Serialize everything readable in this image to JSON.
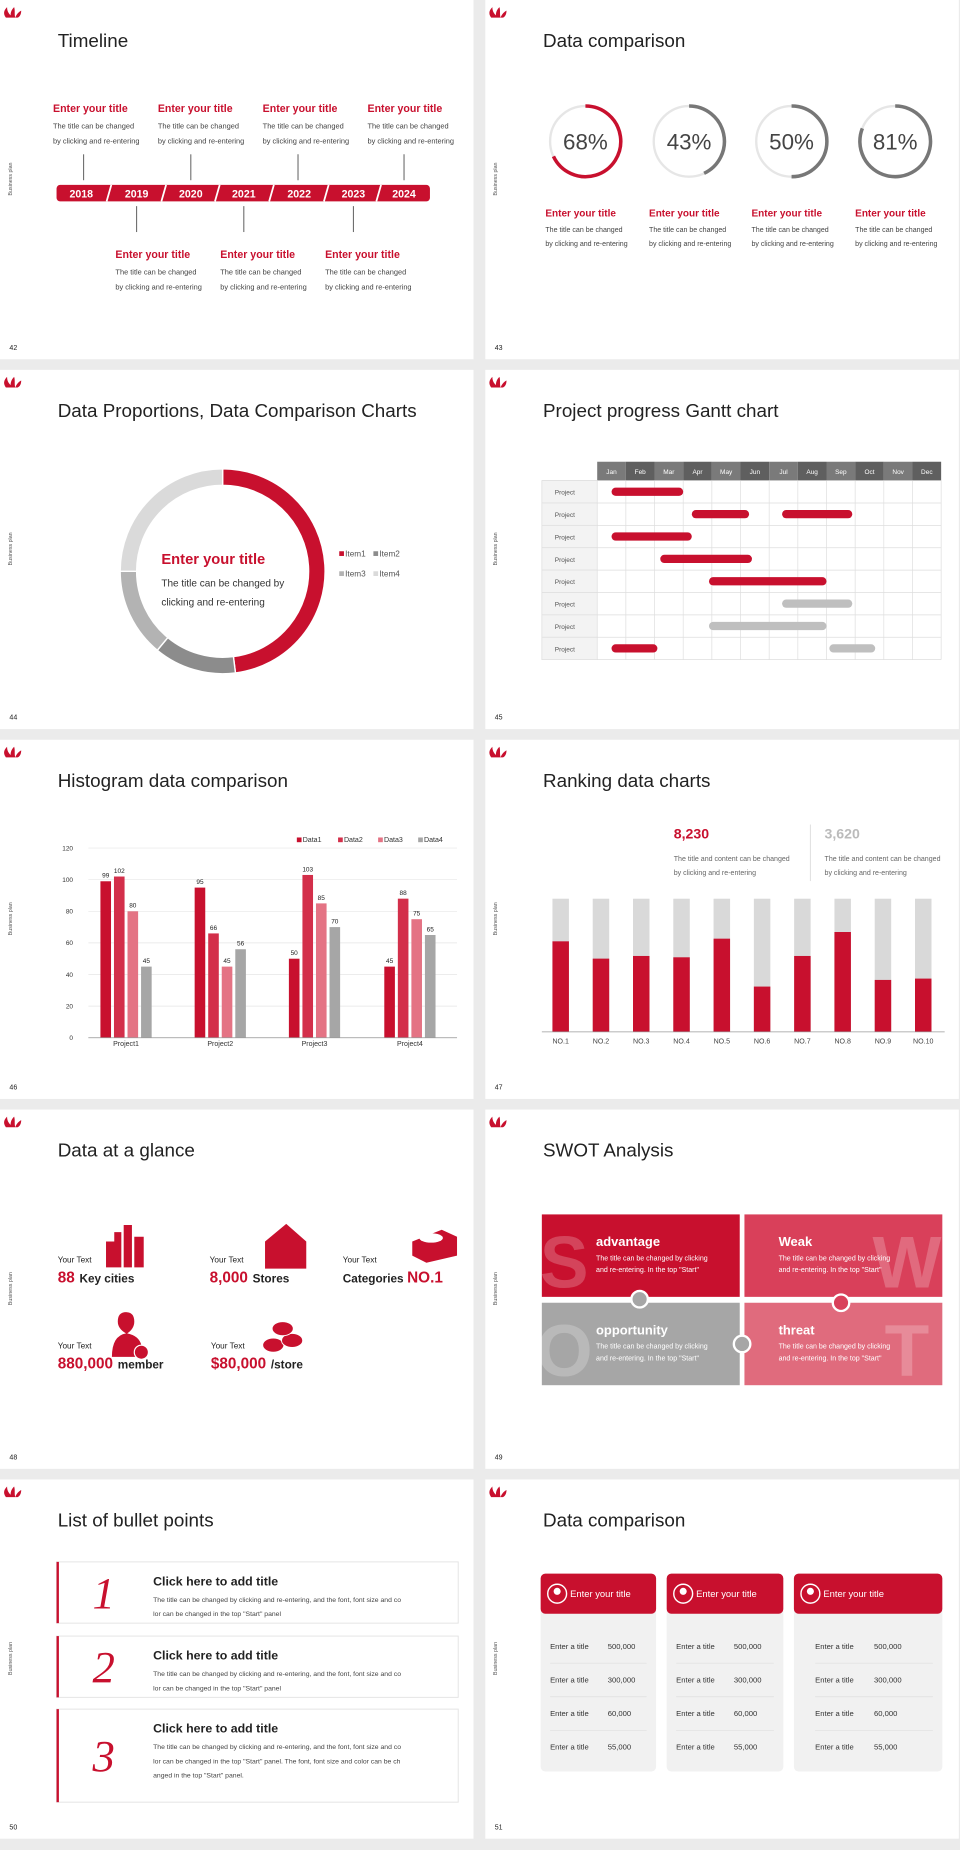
{
  "side_label": "Business plan",
  "slides": [
    {
      "number": "42",
      "title": "Timeline",
      "years": [
        "2018",
        "2019",
        "2020",
        "2021",
        "2022",
        "2023",
        "2024"
      ],
      "items": [
        {
          "title": "Enter your title",
          "lines": [
            "The title can be changed",
            "by clicking and re-entering"
          ]
        },
        {
          "title": "Enter your title",
          "lines": [
            "The title can be changed",
            "by clicking and re-entering"
          ]
        },
        {
          "title": "Enter your title",
          "lines": [
            "The title can be changed",
            "by clicking and re-entering"
          ]
        },
        {
          "title": "Enter your title",
          "lines": [
            "The title can be changed",
            "by clicking and re-entering"
          ]
        },
        {
          "title": "Enter your title",
          "lines": [
            "The title can be changed",
            "by clicking and re-entering"
          ]
        },
        {
          "title": "Enter your title",
          "lines": [
            "The title can be changed",
            "by clicking and re-entering"
          ]
        },
        {
          "title": "Enter your title",
          "lines": [
            "The title can be changed",
            "by clicking and re-entering"
          ]
        }
      ]
    },
    {
      "number": "43",
      "title": "Data comparison",
      "values": [
        68,
        43,
        50,
        81
      ],
      "value_labels": [
        "68%",
        "43%",
        "50%",
        "81%"
      ],
      "items": [
        {
          "title": "Enter your title",
          "lines": [
            "The title can be changed",
            "by clicking and re-entering"
          ]
        },
        {
          "title": "Enter your title",
          "lines": [
            "The title can be changed",
            "by clicking and re-entering"
          ]
        },
        {
          "title": "Enter your title",
          "lines": [
            "The title can be changed",
            "by clicking and re-entering"
          ]
        },
        {
          "title": "Enter your title",
          "lines": [
            "The title can be changed",
            "by clicking and re-entering"
          ]
        }
      ]
    },
    {
      "number": "44",
      "title": "Data Proportions, Data Comparison Charts",
      "chart_data": {
        "type": "donut",
        "categories": [
          "Item1",
          "Item2",
          "Item3",
          "Item4"
        ],
        "values": [
          48,
          13,
          14,
          25
        ],
        "colors": [
          "#c8102e",
          "#8c8c8c",
          "#b3b3b3",
          "#dadada"
        ]
      },
      "center": {
        "title": "Enter your title",
        "lines": [
          "The title can be changed by",
          "clicking and re-entering"
        ]
      }
    },
    {
      "number": "45",
      "title": "Project progress Gantt chart",
      "chart_data": {
        "type": "gantt",
        "xlim": [
          0,
          12
        ],
        "months": [
          "Jan",
          "Feb",
          "Mar",
          "Apr",
          "May",
          "Jun",
          "Jul",
          "Aug",
          "Sep",
          "Oct",
          "Nov",
          "Dec"
        ],
        "rows": [
          {
            "label": "Project",
            "bars": [
              {
                "start": 0.5,
                "end": 3.0,
                "color": "#c8102e"
              }
            ]
          },
          {
            "label": "Project",
            "bars": [
              {
                "start": 3.3,
                "end": 5.3,
                "color": "#c8102e"
              },
              {
                "start": 6.45,
                "end": 8.9,
                "color": "#c8102e"
              }
            ]
          },
          {
            "label": "Project",
            "bars": [
              {
                "start": 0.5,
                "end": 3.3,
                "color": "#c8102e"
              }
            ]
          },
          {
            "label": "Project",
            "bars": [
              {
                "start": 2.2,
                "end": 5.4,
                "color": "#c8102e"
              }
            ]
          },
          {
            "label": "Project",
            "bars": [
              {
                "start": 3.9,
                "end": 8.0,
                "color": "#c8102e"
              }
            ]
          },
          {
            "label": "Project",
            "bars": [
              {
                "start": 6.45,
                "end": 8.9,
                "color": "#bfbfbf"
              }
            ]
          },
          {
            "label": "Project",
            "bars": [
              {
                "start": 3.9,
                "end": 8.0,
                "color": "#bfbfbf"
              }
            ]
          },
          {
            "label": "Project",
            "bars": [
              {
                "start": 0.5,
                "end": 2.1,
                "color": "#c8102e"
              },
              {
                "start": 8.1,
                "end": 9.7,
                "color": "#bfbfbf"
              }
            ]
          }
        ]
      }
    },
    {
      "number": "46",
      "title": "Histogram data comparison",
      "chart_data": {
        "type": "bar",
        "categories": [
          "Project1",
          "Project2",
          "Project3",
          "Project4"
        ],
        "series": [
          {
            "name": "Data1",
            "color": "#c8102e",
            "values": [
              99,
              95,
              50,
              45
            ]
          },
          {
            "name": "Data2",
            "color": "#d32f4a",
            "values": [
              102,
              66,
              103,
              88
            ]
          },
          {
            "name": "Data3",
            "color": "#e47384",
            "values": [
              80,
              45,
              85,
              75
            ]
          },
          {
            "name": "Data4",
            "color": "#a6a6a6",
            "values": [
              45,
              56,
              70,
              65
            ]
          }
        ],
        "ylim": [
          0,
          120
        ],
        "yticks": [
          0,
          20,
          40,
          60,
          80,
          100,
          120
        ],
        "grid": true
      }
    },
    {
      "number": "47",
      "title": "Ranking data charts",
      "stats": [
        {
          "value": "8,230",
          "lines": [
            "The title and content can be changed",
            "by clicking and re-entering"
          ]
        },
        {
          "value": "3,620",
          "lines": [
            "The title and content can be changed",
            "by clicking and re-entering"
          ]
        }
      ],
      "chart_data": {
        "type": "bar",
        "categories": [
          "NO.1",
          "NO.2",
          "NO.3",
          "NO.4",
          "NO.5",
          "NO.6",
          "NO.7",
          "NO.8",
          "NO.9",
          "NO.10"
        ],
        "values": [
          68,
          55,
          57,
          56,
          70,
          34,
          57,
          75,
          39,
          40
        ],
        "ylim": [
          0,
          100
        ]
      }
    },
    {
      "number": "48",
      "title": "Data at a glance",
      "items": [
        {
          "label": "Your Text",
          "value": "88",
          "unit": "Key cities"
        },
        {
          "label": "Your Text",
          "value": "8,000",
          "unit": "Stores"
        },
        {
          "label": "Your Text",
          "prefix": "Categories",
          "value": "NO.1"
        },
        {
          "label": "Your Text",
          "value": "880,000",
          "unit": "member"
        },
        {
          "label": "Your Text",
          "value": "$80,000",
          "unit": "/store"
        }
      ]
    },
    {
      "number": "49",
      "title": "SWOT Analysis",
      "quadrants": [
        {
          "letter": "S",
          "title": "advantage",
          "lines": [
            "The title can be changed by clicking",
            "and re-entering. In the top \"Start\""
          ]
        },
        {
          "letter": "W",
          "title": "Weak",
          "lines": [
            "The title can be changed by clicking",
            "and re-entering. In the top \"Start\""
          ]
        },
        {
          "letter": "O",
          "title": "opportunity",
          "lines": [
            "The title can be changed by clicking",
            "and re-entering. In the top \"Start\""
          ]
        },
        {
          "letter": "T",
          "title": "threat",
          "lines": [
            "The title can be changed by clicking",
            "and re-entering. In the top \"Start\""
          ]
        }
      ]
    },
    {
      "number": "50",
      "title": "List of bullet points",
      "items": [
        {
          "number": "1",
          "title": "Click here to add title",
          "lines": [
            "The title can be changed by clicking and re-entering, and the font, font size and co",
            "lor can be changed in the top \"Start\" panel"
          ]
        },
        {
          "number": "2",
          "title": "Click here to add title",
          "lines": [
            "The title can be changed by clicking and re-entering, and the font, font size and co",
            "lor can be changed in the top \"Start\" panel"
          ]
        },
        {
          "number": "3",
          "title": "Click here to add title",
          "lines": [
            "The title can be changed by clicking and re-entering, and the font, font size and co",
            "lor can be changed in the top \"Start\" panel. The font, font size and color can be ch",
            "anged in the top \"Start\" panel."
          ]
        }
      ]
    },
    {
      "number": "51",
      "title": "Data comparison",
      "cards": [
        {
          "title": "Enter your title",
          "rows": [
            [
              "Enter a title",
              "500,000"
            ],
            [
              "Enter a title",
              "300,000"
            ],
            [
              "Enter a title",
              "60,000"
            ],
            [
              "Enter a title",
              "55,000"
            ]
          ]
        },
        {
          "title": "Enter your title",
          "rows": [
            [
              "Enter a title",
              "500,000"
            ],
            [
              "Enter a title",
              "300,000"
            ],
            [
              "Enter a title",
              "60,000"
            ],
            [
              "Enter a title",
              "55,000"
            ]
          ]
        },
        {
          "title": "Enter your title",
          "rows": [
            [
              "Enter a title",
              "500,000"
            ],
            [
              "Enter a title",
              "300,000"
            ],
            [
              "Enter a title",
              "60,000"
            ],
            [
              "Enter a title",
              "55,000"
            ]
          ]
        }
      ]
    }
  ]
}
